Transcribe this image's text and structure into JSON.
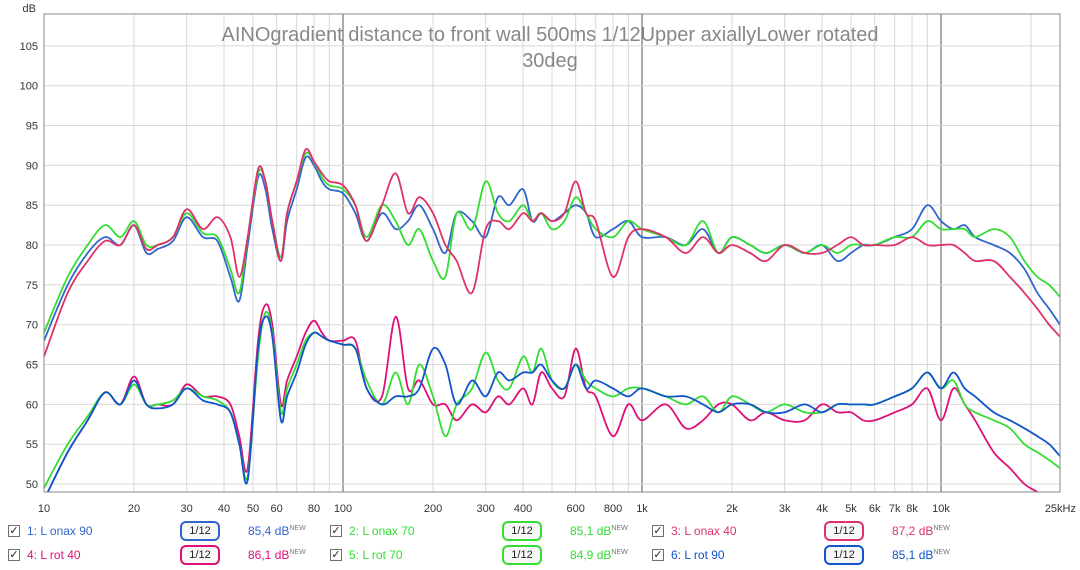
{
  "chart_data": {
    "type": "line",
    "title": "AINOgradient distance to front wall 500ms 1/12Upper axiallyLower rotated 30deg",
    "ylabel": "dB",
    "xlabel": "",
    "x_scale": "log",
    "xlim": [
      10,
      25000
    ],
    "ylim": [
      49,
      109
    ],
    "y_ticks": [
      50,
      55,
      60,
      65,
      70,
      75,
      80,
      85,
      90,
      95,
      100,
      105
    ],
    "x_ticks": [
      {
        "v": 10,
        "label": "10"
      },
      {
        "v": 20,
        "label": "20"
      },
      {
        "v": 30,
        "label": "30"
      },
      {
        "v": 40,
        "label": "40"
      },
      {
        "v": 50,
        "label": "50"
      },
      {
        "v": 60,
        "label": "60"
      },
      {
        "v": 80,
        "label": "80"
      },
      {
        "v": 100,
        "label": "100"
      },
      {
        "v": 200,
        "label": "200"
      },
      {
        "v": 300,
        "label": "300"
      },
      {
        "v": 400,
        "label": "400"
      },
      {
        "v": 600,
        "label": "600"
      },
      {
        "v": 800,
        "label": "800"
      },
      {
        "v": 1000,
        "label": "1k"
      },
      {
        "v": 2000,
        "label": "2k"
      },
      {
        "v": 3000,
        "label": "3k"
      },
      {
        "v": 4000,
        "label": "4k"
      },
      {
        "v": 5000,
        "label": "5k"
      },
      {
        "v": 6000,
        "label": "6k"
      },
      {
        "v": 7000,
        "label": "7k"
      },
      {
        "v": 8000,
        "label": "8k"
      },
      {
        "v": 10000,
        "label": "10k"
      },
      {
        "v": 25000,
        "label": "25kHz"
      }
    ],
    "grid": true,
    "legend_position": "bottom",
    "series": [
      {
        "name": "1: L onax 90",
        "color": "#3366cc",
        "smoothing": "1/12",
        "level": "85,4 dB",
        "x": [
          10,
          12,
          14,
          16,
          18,
          20,
          22,
          24,
          27,
          30,
          34,
          38,
          42,
          45,
          48,
          52,
          55,
          58,
          62,
          65,
          70,
          75,
          80,
          85,
          90,
          100,
          110,
          120,
          135,
          150,
          165,
          180,
          200,
          220,
          240,
          270,
          300,
          330,
          360,
          400,
          430,
          460,
          500,
          550,
          600,
          650,
          700,
          800,
          900,
          1000,
          1200,
          1400,
          1600,
          1800,
          2000,
          2300,
          2600,
          3000,
          3500,
          4000,
          4500,
          5000,
          5500,
          6000,
          7000,
          8000,
          9000,
          10000,
          11000,
          12000,
          13000,
          15000,
          17000,
          19000,
          21000,
          23000,
          25000
        ],
        "y": [
          68,
          75,
          79,
          81,
          80,
          82.5,
          79,
          79.5,
          80.5,
          83.5,
          81,
          80.5,
          76,
          73,
          80,
          88.5,
          87,
          82,
          78,
          83,
          87,
          91,
          90,
          88,
          87,
          86.5,
          84,
          80.5,
          84,
          82,
          83,
          85,
          82,
          79,
          84,
          83,
          81,
          86,
          85,
          87,
          83,
          84,
          83,
          84,
          85,
          84,
          81,
          82,
          83,
          81,
          81,
          80,
          82,
          79,
          81,
          80,
          79,
          80,
          79,
          80,
          78,
          79,
          80,
          80,
          81,
          82,
          85,
          83,
          82,
          82.5,
          81,
          80,
          79,
          77,
          74,
          72,
          70
        ]
      },
      {
        "name": "2: L onax 70",
        "color": "#33dd33",
        "smoothing": "1/12",
        "level": "85,1 dB",
        "x": [
          10,
          12,
          14,
          16,
          18,
          20,
          22,
          24,
          27,
          30,
          34,
          38,
          42,
          45,
          48,
          52,
          55,
          58,
          62,
          65,
          70,
          75,
          80,
          85,
          90,
          100,
          110,
          120,
          135,
          150,
          165,
          180,
          200,
          220,
          240,
          270,
          300,
          330,
          360,
          400,
          430,
          460,
          500,
          550,
          600,
          650,
          700,
          800,
          900,
          1000,
          1200,
          1400,
          1600,
          1800,
          2000,
          2300,
          2600,
          3000,
          3500,
          4000,
          4500,
          5000,
          5500,
          6000,
          7000,
          8000,
          9000,
          10000,
          11000,
          12000,
          13000,
          15000,
          17000,
          19000,
          21000,
          23000,
          25000
        ],
        "y": [
          69,
          76,
          80,
          82.5,
          81,
          83,
          80,
          80,
          81,
          84,
          81.5,
          81,
          77,
          74,
          81,
          89,
          88,
          83,
          78.5,
          84,
          88,
          91.5,
          90.5,
          88.5,
          87.5,
          87,
          85,
          81,
          85,
          83,
          80,
          82,
          78,
          76,
          84,
          82,
          88,
          84,
          83,
          85,
          83,
          84,
          82,
          83,
          86,
          84,
          82,
          81,
          83,
          82,
          81,
          80,
          83,
          79,
          81,
          80,
          79,
          80,
          79,
          80,
          79,
          80,
          80,
          80,
          81,
          81,
          83,
          82,
          82,
          82,
          81,
          82,
          81,
          78,
          76,
          75,
          73.5
        ]
      },
      {
        "name": "3: L onax 40",
        "color": "#dd3366",
        "smoothing": "1/12",
        "level": "87,2 dB",
        "x": [
          10,
          12,
          14,
          16,
          18,
          20,
          22,
          24,
          27,
          30,
          34,
          38,
          42,
          45,
          48,
          52,
          55,
          58,
          62,
          65,
          70,
          75,
          80,
          85,
          90,
          100,
          110,
          120,
          135,
          150,
          165,
          180,
          200,
          220,
          240,
          270,
          300,
          330,
          360,
          400,
          430,
          460,
          500,
          550,
          600,
          650,
          700,
          800,
          900,
          1000,
          1200,
          1400,
          1600,
          1800,
          2000,
          2300,
          2600,
          3000,
          3500,
          4000,
          4500,
          5000,
          5500,
          6000,
          7000,
          8000,
          9000,
          10000,
          11000,
          12000,
          13000,
          15000,
          17000,
          19000,
          21000,
          23000,
          25000
        ],
        "y": [
          66,
          74,
          78,
          80.5,
          80,
          82.5,
          79.5,
          80,
          81,
          84.5,
          82,
          83.5,
          81,
          76,
          81,
          89.5,
          88,
          83,
          78,
          84,
          88,
          92,
          90.5,
          89,
          88,
          87.5,
          85,
          80.5,
          85,
          89,
          84,
          86,
          84,
          80,
          78,
          74,
          82,
          83,
          82,
          84,
          83,
          84,
          83,
          84,
          88,
          84,
          83,
          76,
          81,
          82,
          81,
          79,
          81,
          79,
          80,
          79,
          78,
          80,
          79,
          79,
          80,
          81,
          80,
          80,
          80,
          81,
          80,
          80,
          80,
          79,
          78,
          78,
          76,
          74,
          72,
          70,
          68.5
        ]
      },
      {
        "name": "4: L rot 40",
        "color": "#dd1177",
        "smoothing": "1/12",
        "level": "86,1 dB",
        "x": [
          10,
          12,
          14,
          16,
          18,
          20,
          22,
          24,
          27,
          30,
          34,
          38,
          42,
          45,
          48,
          52,
          55,
          58,
          62,
          65,
          70,
          75,
          80,
          85,
          90,
          100,
          110,
          120,
          135,
          150,
          165,
          180,
          200,
          220,
          240,
          270,
          300,
          330,
          360,
          400,
          430,
          460,
          500,
          550,
          600,
          650,
          700,
          800,
          900,
          1000,
          1200,
          1400,
          1600,
          1800,
          2000,
          2300,
          2600,
          3000,
          3500,
          4000,
          4500,
          5000,
          5500,
          6000,
          7000,
          8000,
          9000,
          10000,
          11000,
          12000,
          13000,
          15000,
          17000,
          19000,
          21000,
          23000,
          25000
        ],
        "y": [
          48,
          54,
          58,
          61.5,
          60,
          63.5,
          60,
          60,
          60,
          62.5,
          61,
          61,
          60,
          56,
          52,
          68,
          72.5,
          70,
          60,
          63,
          66,
          69,
          70.5,
          69,
          68,
          68,
          68,
          62,
          61,
          71,
          62,
          63,
          60,
          60,
          58,
          60,
          59,
          61,
          60,
          62,
          60,
          64,
          62,
          61,
          67,
          62,
          61,
          56,
          60,
          58,
          60,
          57,
          58,
          60,
          60,
          58,
          59,
          58,
          58,
          60,
          59,
          59,
          58,
          58,
          59,
          60,
          62,
          58,
          62,
          60,
          58,
          54,
          52,
          50,
          49,
          48,
          47
        ]
      },
      {
        "name": "5: L rot 70",
        "color": "#33dd33",
        "smoothing": "1/12",
        "level": "84,9 dB",
        "x": [
          10,
          12,
          14,
          16,
          18,
          20,
          22,
          24,
          27,
          30,
          34,
          38,
          42,
          45,
          48,
          52,
          55,
          58,
          62,
          65,
          70,
          75,
          80,
          85,
          90,
          100,
          110,
          120,
          135,
          150,
          165,
          180,
          200,
          220,
          240,
          270,
          300,
          330,
          360,
          400,
          430,
          460,
          500,
          550,
          600,
          650,
          700,
          800,
          900,
          1000,
          1200,
          1400,
          1600,
          1800,
          2000,
          2300,
          2600,
          3000,
          3500,
          4000,
          4500,
          5000,
          5500,
          6000,
          7000,
          8000,
          9000,
          10000,
          11000,
          12000,
          13000,
          15000,
          17000,
          19000,
          21000,
          23000,
          25000
        ],
        "y": [
          49.5,
          55,
          58.5,
          61.5,
          60,
          62.5,
          60,
          60,
          60.5,
          62,
          61,
          60.5,
          59,
          55,
          51,
          66,
          71.5,
          69,
          59,
          62,
          65,
          68,
          69,
          68.5,
          68,
          67.5,
          67,
          63,
          60,
          64,
          60,
          65,
          61,
          56,
          60,
          62,
          66.5,
          63,
          62,
          66,
          64,
          67,
          63,
          62,
          65,
          63,
          62,
          61,
          62,
          62,
          61,
          60,
          61,
          59,
          61,
          60,
          59,
          60,
          59,
          59,
          60,
          60,
          60,
          60,
          61,
          62,
          64,
          62,
          63,
          60,
          59,
          58,
          57,
          55,
          54,
          53,
          52
        ]
      },
      {
        "name": "6: L rot 90",
        "color": "#1155cc",
        "smoothing": "1/12",
        "level": "85,1 dB",
        "x": [
          10,
          12,
          14,
          16,
          18,
          20,
          22,
          24,
          27,
          30,
          34,
          38,
          42,
          45,
          48,
          52,
          55,
          58,
          62,
          65,
          70,
          75,
          80,
          85,
          90,
          100,
          110,
          120,
          135,
          150,
          165,
          180,
          200,
          220,
          240,
          270,
          300,
          330,
          360,
          400,
          430,
          460,
          500,
          550,
          600,
          650,
          700,
          800,
          900,
          1000,
          1200,
          1400,
          1600,
          1800,
          2000,
          2300,
          2600,
          3000,
          3500,
          4000,
          4500,
          5000,
          5500,
          6000,
          7000,
          8000,
          9000,
          10000,
          11000,
          12000,
          13000,
          15000,
          17000,
          19000,
          21000,
          23000,
          25000
        ],
        "y": [
          48,
          54,
          58,
          61.5,
          60,
          63,
          60,
          59.5,
          60,
          62,
          60.5,
          60,
          59,
          55,
          50.5,
          67,
          71,
          68.5,
          58,
          61,
          64,
          67.5,
          69,
          68.5,
          68,
          67.5,
          67,
          62,
          60,
          61,
          61,
          62,
          67,
          65,
          60,
          63,
          61,
          64,
          63,
          64,
          64,
          65,
          63,
          62,
          65,
          62,
          63,
          62,
          61,
          62,
          61,
          61,
          60,
          59,
          60,
          60,
          59,
          59,
          60,
          59,
          60,
          60,
          60,
          60,
          61,
          62,
          64,
          62,
          64,
          62,
          61,
          59,
          58,
          57,
          56,
          55,
          53.5
        ]
      }
    ]
  }
}
